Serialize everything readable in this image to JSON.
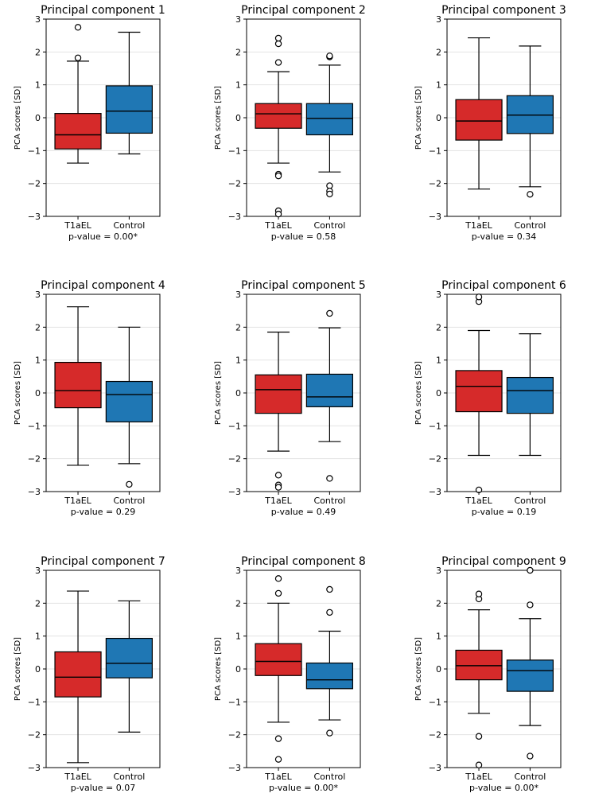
{
  "figure": {
    "groups": [
      "T1aEL",
      "Control"
    ],
    "group_colors": [
      "#d62a2a",
      "#1f77b4"
    ],
    "ylabel": "PCA scores [SD]",
    "ylim": [
      -3,
      3
    ],
    "yticks": [
      -3,
      -2,
      -1,
      0,
      1,
      2,
      3
    ]
  },
  "chart_data": [
    {
      "type": "box",
      "title": "Principal component 1",
      "xlabel": "",
      "ylabel": "PCA scores [SD]",
      "ylim": [
        -3,
        3
      ],
      "categories": [
        "T1aEL",
        "Control"
      ],
      "pvalue_label": "p-value = 0.00*",
      "series": [
        {
          "name": "T1aEL",
          "whisker_low": -1.38,
          "q1": -0.95,
          "median": -0.52,
          "q3": 0.13,
          "whisker_high": 1.72,
          "outliers": [
            1.82,
            2.75
          ]
        },
        {
          "name": "Control",
          "whisker_low": -1.1,
          "q1": -0.47,
          "median": 0.2,
          "q3": 0.97,
          "whisker_high": 2.6,
          "outliers": []
        }
      ]
    },
    {
      "type": "box",
      "title": "Principal component 2",
      "xlabel": "",
      "ylabel": "PCA scores [SD]",
      "ylim": [
        -3,
        3
      ],
      "categories": [
        "T1aEL",
        "Control"
      ],
      "pvalue_label": "p-value = 0.58",
      "series": [
        {
          "name": "T1aEL",
          "whisker_low": -1.38,
          "q1": -0.32,
          "median": 0.12,
          "q3": 0.43,
          "whisker_high": 1.4,
          "outliers": [
            -1.72,
            -1.77,
            -2.83,
            -2.93,
            1.68,
            2.25,
            2.42
          ]
        },
        {
          "name": "Control",
          "whisker_low": -1.65,
          "q1": -0.52,
          "median": -0.02,
          "q3": 0.43,
          "whisker_high": 1.6,
          "outliers": [
            -2.07,
            -2.23,
            -2.32,
            1.85,
            1.88
          ]
        }
      ]
    },
    {
      "type": "box",
      "title": "Principal component 3",
      "xlabel": "",
      "ylabel": "PCA scores [SD]",
      "ylim": [
        -3,
        3
      ],
      "categories": [
        "T1aEL",
        "Control"
      ],
      "pvalue_label": "p-value = 0.34",
      "series": [
        {
          "name": "T1aEL",
          "whisker_low": -2.17,
          "q1": -0.68,
          "median": -0.1,
          "q3": 0.55,
          "whisker_high": 2.43,
          "outliers": []
        },
        {
          "name": "Control",
          "whisker_low": -2.1,
          "q1": -0.48,
          "median": 0.08,
          "q3": 0.67,
          "whisker_high": 2.18,
          "outliers": [
            -2.33
          ]
        }
      ]
    },
    {
      "type": "box",
      "title": "Principal component 4",
      "xlabel": "",
      "ylabel": "PCA scores [SD]",
      "ylim": [
        -3,
        3
      ],
      "categories": [
        "T1aEL",
        "Control"
      ],
      "pvalue_label": "p-value = 0.29",
      "series": [
        {
          "name": "T1aEL",
          "whisker_low": -2.2,
          "q1": -0.45,
          "median": 0.07,
          "q3": 0.93,
          "whisker_high": 2.62,
          "outliers": []
        },
        {
          "name": "Control",
          "whisker_low": -2.15,
          "q1": -0.88,
          "median": -0.05,
          "q3": 0.35,
          "whisker_high": 2.0,
          "outliers": [
            -2.78
          ]
        }
      ]
    },
    {
      "type": "box",
      "title": "Principal component 5",
      "xlabel": "",
      "ylabel": "PCA scores [SD]",
      "ylim": [
        -3,
        3
      ],
      "categories": [
        "T1aEL",
        "Control"
      ],
      "pvalue_label": "p-value = 0.49",
      "series": [
        {
          "name": "T1aEL",
          "whisker_low": -1.77,
          "q1": -0.62,
          "median": 0.1,
          "q3": 0.55,
          "whisker_high": 1.85,
          "outliers": [
            -2.5,
            -2.8,
            -2.87
          ]
        },
        {
          "name": "Control",
          "whisker_low": -1.48,
          "q1": -0.42,
          "median": -0.12,
          "q3": 0.57,
          "whisker_high": 1.98,
          "outliers": [
            -2.6,
            2.42
          ]
        }
      ]
    },
    {
      "type": "box",
      "title": "Principal component 6",
      "xlabel": "",
      "ylabel": "PCA scores [SD]",
      "ylim": [
        -3,
        3
      ],
      "categories": [
        "T1aEL",
        "Control"
      ],
      "pvalue_label": "p-value = 0.19",
      "series": [
        {
          "name": "T1aEL",
          "whisker_low": -1.9,
          "q1": -0.57,
          "median": 0.2,
          "q3": 0.68,
          "whisker_high": 1.9,
          "outliers": [
            -2.95,
            2.78,
            2.92
          ]
        },
        {
          "name": "Control",
          "whisker_low": -1.9,
          "q1": -0.62,
          "median": 0.07,
          "q3": 0.47,
          "whisker_high": 1.8,
          "outliers": []
        }
      ]
    },
    {
      "type": "box",
      "title": "Principal component 7",
      "xlabel": "",
      "ylabel": "PCA scores [SD]",
      "ylim": [
        -3,
        3
      ],
      "categories": [
        "T1aEL",
        "Control"
      ],
      "pvalue_label": "p-value = 0.07",
      "series": [
        {
          "name": "T1aEL",
          "whisker_low": -2.85,
          "q1": -0.85,
          "median": -0.25,
          "q3": 0.52,
          "whisker_high": 2.37,
          "outliers": []
        },
        {
          "name": "Control",
          "whisker_low": -1.92,
          "q1": -0.27,
          "median": 0.17,
          "q3": 0.93,
          "whisker_high": 2.07,
          "outliers": []
        }
      ]
    },
    {
      "type": "box",
      "title": "Principal component 8",
      "xlabel": "",
      "ylabel": "PCA scores [SD]",
      "ylim": [
        -3,
        3
      ],
      "categories": [
        "T1aEL",
        "Control"
      ],
      "pvalue_label": "p-value = 0.00*",
      "series": [
        {
          "name": "T1aEL",
          "whisker_low": -1.62,
          "q1": -0.2,
          "median": 0.23,
          "q3": 0.77,
          "whisker_high": 2.0,
          "outliers": [
            -2.12,
            -2.75,
            2.3,
            2.75
          ]
        },
        {
          "name": "Control",
          "whisker_low": -1.55,
          "q1": -0.6,
          "median": -0.33,
          "q3": 0.18,
          "whisker_high": 1.15,
          "outliers": [
            -1.95,
            1.72,
            2.42
          ]
        }
      ]
    },
    {
      "type": "box",
      "title": "Principal component 9",
      "xlabel": "",
      "ylabel": "PCA scores [SD]",
      "ylim": [
        -3,
        3
      ],
      "categories": [
        "T1aEL",
        "Control"
      ],
      "pvalue_label": "p-value = 0.00*",
      "series": [
        {
          "name": "T1aEL",
          "whisker_low": -1.35,
          "q1": -0.33,
          "median": 0.1,
          "q3": 0.57,
          "whisker_high": 1.8,
          "outliers": [
            -2.05,
            -2.92,
            2.13,
            2.28
          ]
        },
        {
          "name": "Control",
          "whisker_low": -1.72,
          "q1": -0.68,
          "median": -0.05,
          "q3": 0.27,
          "whisker_high": 1.53,
          "outliers": [
            -2.65,
            1.95,
            3.0
          ]
        }
      ]
    }
  ]
}
